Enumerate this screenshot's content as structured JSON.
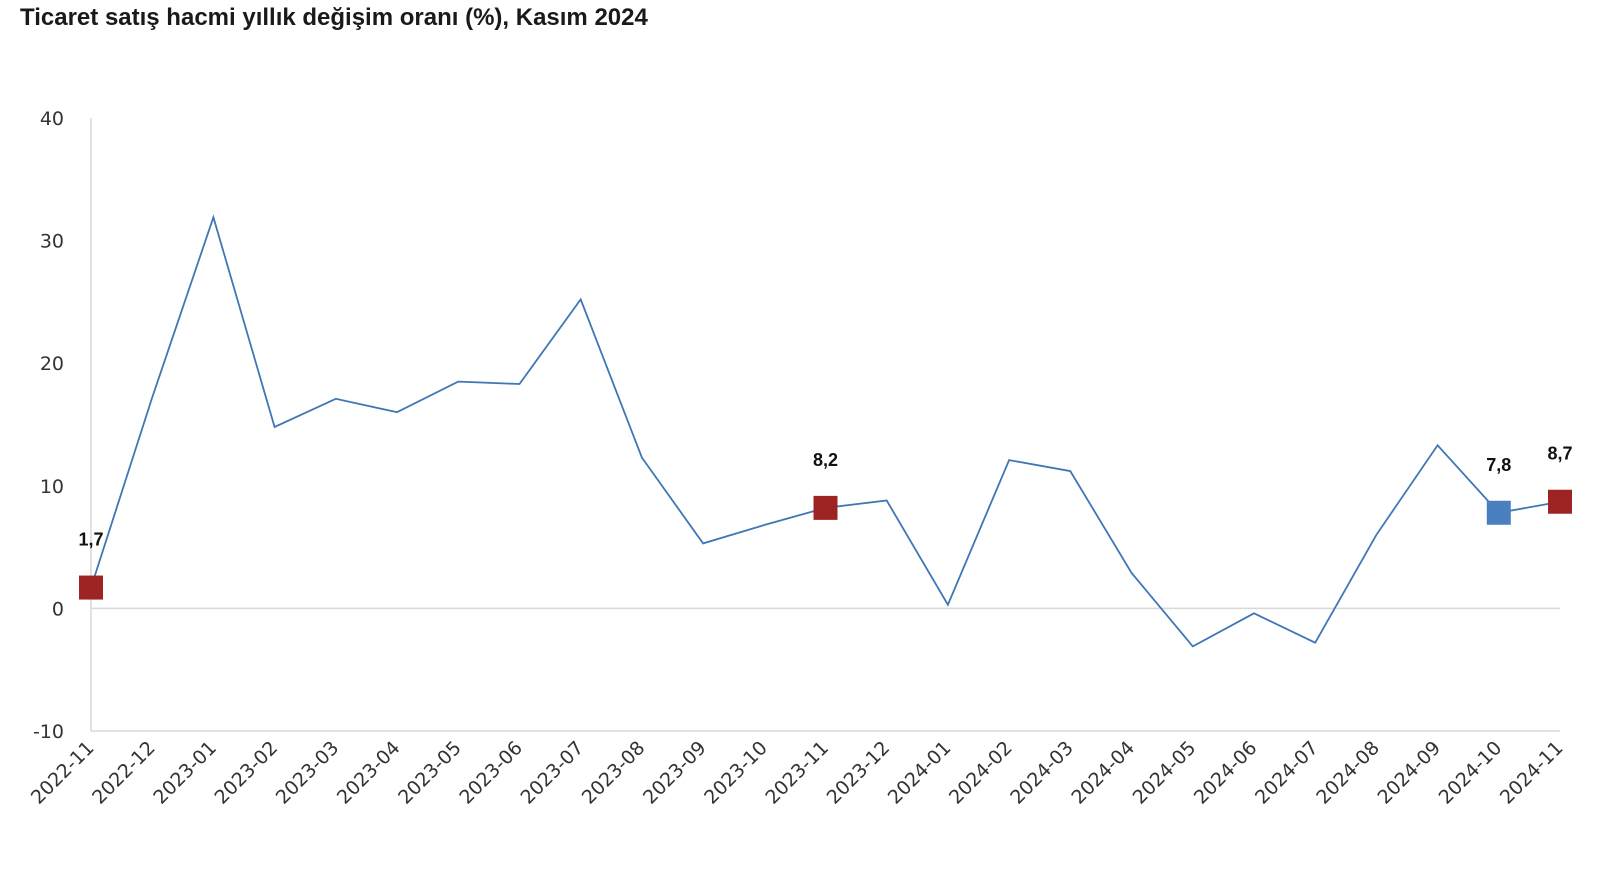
{
  "chart_data": {
    "type": "line",
    "title": "Ticaret satış hacmi yıllık değişim oranı (%), Kasım 2024",
    "xlabel": "",
    "ylabel": "",
    "ylim": [
      -10,
      40
    ],
    "yticks": [
      -10,
      0,
      10,
      20,
      30,
      40
    ],
    "categories": [
      "2022-11",
      "2022-12",
      "2023-01",
      "2023-02",
      "2023-03",
      "2023-04",
      "2023-05",
      "2023-06",
      "2023-07",
      "2023-08",
      "2023-09",
      "2023-10",
      "2023-11",
      "2023-12",
      "2024-01",
      "2024-02",
      "2024-03",
      "2024-04",
      "2024-05",
      "2024-06",
      "2024-07",
      "2024-08",
      "2024-09",
      "2024-10",
      "2024-11"
    ],
    "series": [
      {
        "values": [
          1.7,
          17.2,
          31.9,
          14.8,
          17.1,
          16.0,
          18.5,
          18.3,
          25.2,
          12.3,
          5.3,
          6.8,
          8.2,
          8.8,
          0.3,
          12.1,
          11.2,
          2.9,
          -3.1,
          -0.4,
          -2.8,
          6.0,
          13.3,
          7.8,
          8.7
        ],
        "color": "#3f77b5"
      }
    ],
    "markers": [
      {
        "index": 0,
        "label": "1,7",
        "color": "#9e2424"
      },
      {
        "index": 12,
        "label": "8,2",
        "color": "#9e2424"
      },
      {
        "index": 23,
        "label": "7,8",
        "color": "#4a7fc0"
      },
      {
        "index": 24,
        "label": "8,7",
        "color": "#9e2424"
      }
    ],
    "grid": false,
    "legend": "none"
  }
}
